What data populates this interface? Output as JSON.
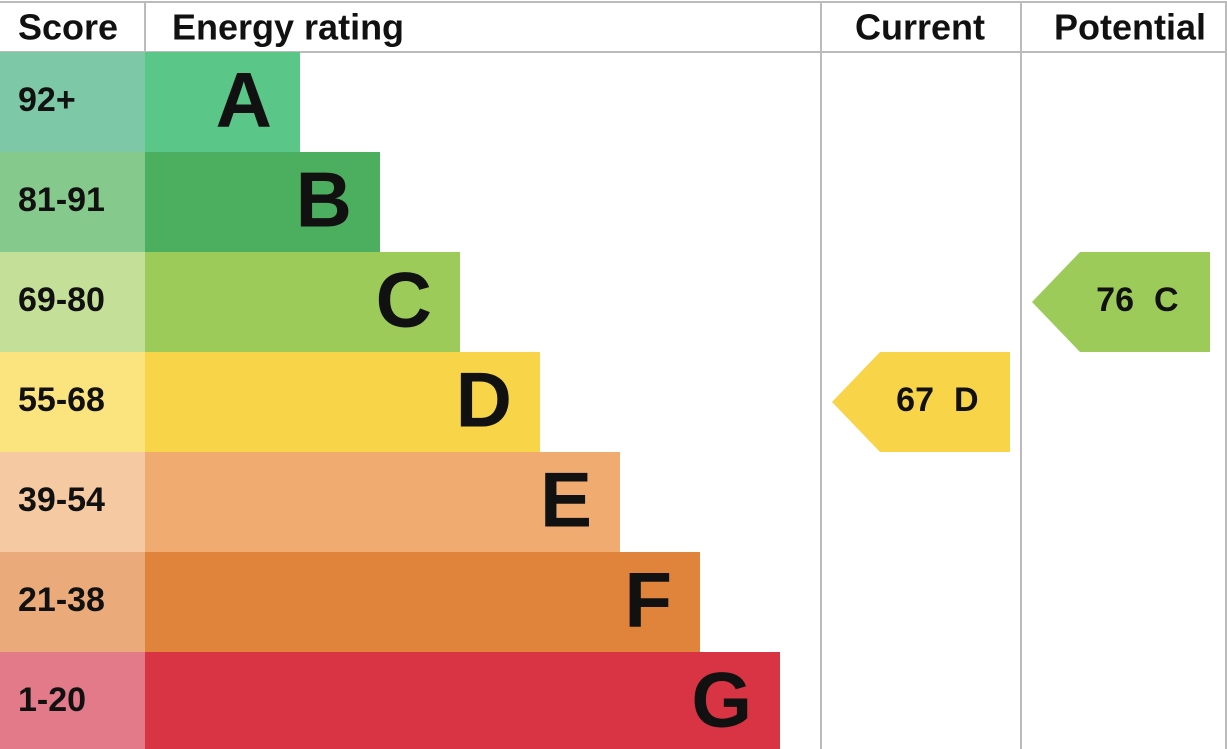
{
  "header": {
    "score": "Score",
    "rating": "Energy rating",
    "current": "Current",
    "potential": "Potential"
  },
  "bands": [
    {
      "score": "92+",
      "letter": "A"
    },
    {
      "score": "81-91",
      "letter": "B"
    },
    {
      "score": "69-80",
      "letter": "C"
    },
    {
      "score": "55-68",
      "letter": "D"
    },
    {
      "score": "39-54",
      "letter": "E"
    },
    {
      "score": "21-38",
      "letter": "F"
    },
    {
      "score": "1-20",
      "letter": "G"
    }
  ],
  "current": {
    "value": "67",
    "letter": "D"
  },
  "potential": {
    "value": "76",
    "letter": "C"
  }
}
